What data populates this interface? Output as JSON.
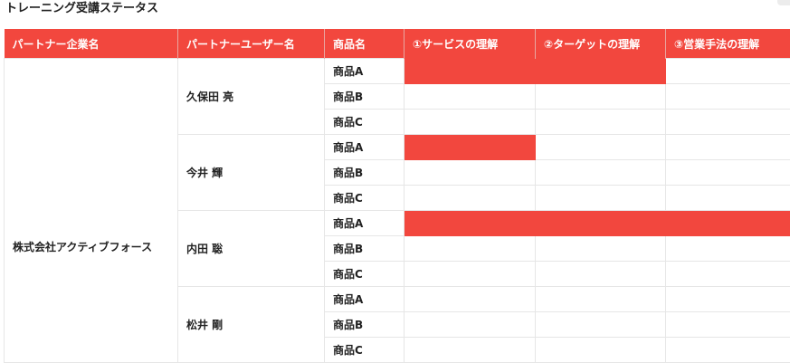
{
  "page_title": "トレーニング受講ステータス",
  "colors": {
    "accent": "#f2473e",
    "header_text": "#ffffff",
    "grid": "#e6e6e6"
  },
  "columns": {
    "partner_company": "パートナー企業名",
    "partner_user": "パートナーユーザー名",
    "product": "商品名",
    "stage1": "①サービスの理解",
    "stage2": "②ターゲットの理解",
    "stage3": "③営業手法の理解"
  },
  "company": "株式会社アクティブフォース",
  "users": [
    {
      "name": "久保田 亮",
      "products": [
        {
          "name": "商品A",
          "done": [
            true,
            true,
            false
          ]
        },
        {
          "name": "商品B",
          "done": [
            false,
            false,
            false
          ]
        },
        {
          "name": "商品C",
          "done": [
            false,
            false,
            false
          ]
        }
      ]
    },
    {
      "name": "今井 輝",
      "products": [
        {
          "name": "商品A",
          "done": [
            true,
            false,
            false
          ]
        },
        {
          "name": "商品B",
          "done": [
            false,
            false,
            false
          ]
        },
        {
          "name": "商品C",
          "done": [
            false,
            false,
            false
          ]
        }
      ]
    },
    {
      "name": "内田 聡",
      "products": [
        {
          "name": "商品A",
          "done": [
            true,
            true,
            true
          ]
        },
        {
          "name": "商品B",
          "done": [
            false,
            false,
            false
          ]
        },
        {
          "name": "商品C",
          "done": [
            false,
            false,
            false
          ]
        }
      ]
    },
    {
      "name": "松井 剛",
      "products": [
        {
          "name": "商品A",
          "done": [
            false,
            false,
            false
          ]
        },
        {
          "name": "商品B",
          "done": [
            false,
            false,
            false
          ]
        },
        {
          "name": "商品C",
          "done": [
            false,
            false,
            false
          ]
        }
      ]
    }
  ]
}
